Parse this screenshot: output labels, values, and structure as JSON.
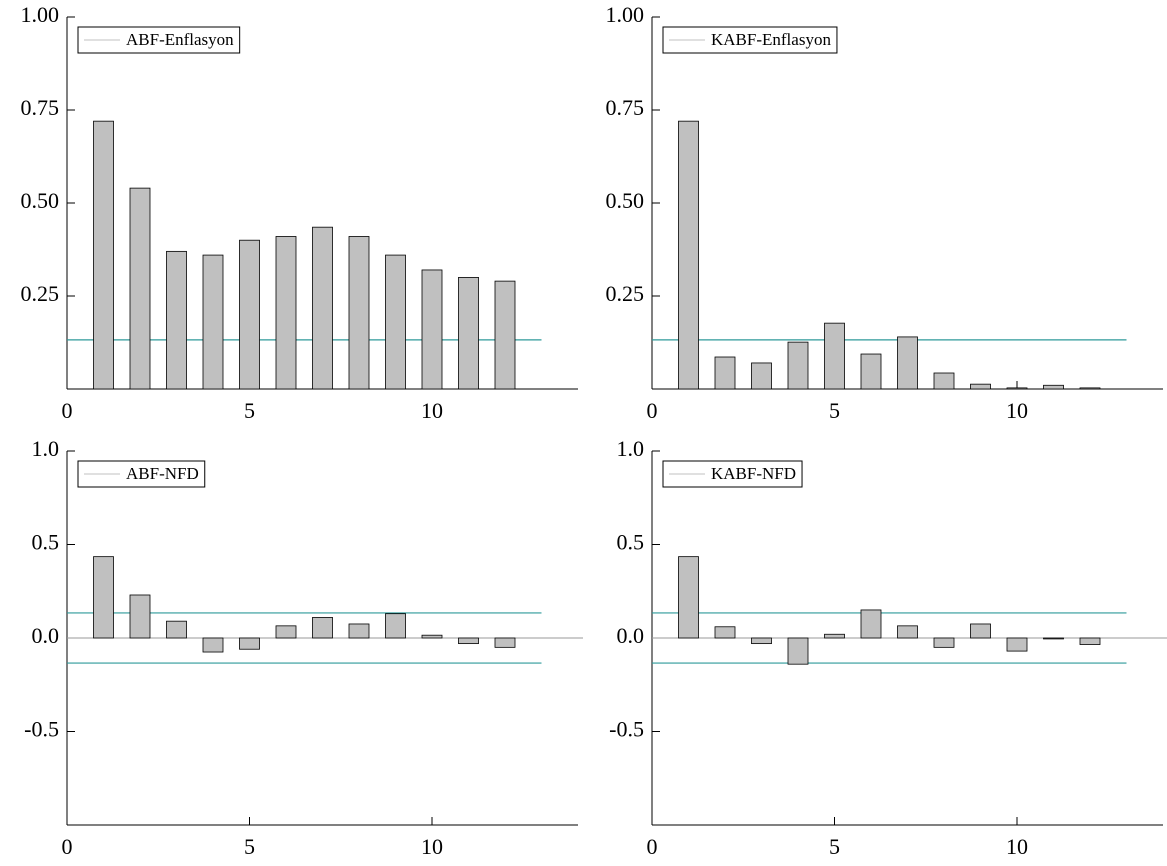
{
  "chart_data": [
    {
      "type": "bar",
      "x": [
        1,
        2,
        3,
        4,
        5,
        6,
        7,
        8,
        9,
        10,
        11,
        12
      ],
      "series": [
        {
          "name": "ABF-Enflasyon",
          "color": "#c0c0c0",
          "values": [
            0.72,
            0.54,
            0.37,
            0.36,
            0.4,
            0.41,
            0.435,
            0.41,
            0.36,
            0.32,
            0.3,
            0.29
          ]
        }
      ],
      "bands": [
        0.132
      ],
      "band_color": "#2e9a9a",
      "legend": "upper left",
      "xlim": [
        0,
        14
      ],
      "xticks": [
        0,
        5,
        10
      ],
      "ylim": [
        0,
        1
      ],
      "yticks": [
        0.25,
        {
          "value": 0.5,
          "label": "0.50"
        },
        0.75,
        {
          "value": 1,
          "label": "1.00"
        }
      ]
    },
    {
      "type": "bar",
      "x": [
        1,
        2,
        3,
        4,
        5,
        6,
        7,
        8,
        9,
        10,
        11,
        12
      ],
      "series": [
        {
          "name": "KABF-Enflasyon",
          "color": "#c0c0c0",
          "values": [
            0.72,
            0.086,
            0.07,
            0.126,
            0.177,
            0.094,
            0.14,
            0.043,
            0.013,
            0.003,
            0.01,
            0.003
          ]
        }
      ],
      "bands": [
        0.132
      ],
      "band_color": "#2e9a9a",
      "legend": "upper left",
      "xlim": [
        0,
        14
      ],
      "xticks": [
        0,
        5,
        10
      ],
      "ylim": [
        0,
        1
      ],
      "yticks": [
        0.25,
        {
          "value": 0.5,
          "label": "0.50"
        },
        0.75,
        {
          "value": 1,
          "label": "1.00"
        }
      ]
    },
    {
      "type": "bar",
      "x": [
        1,
        2,
        3,
        4,
        5,
        6,
        7,
        8,
        9,
        10,
        11,
        12
      ],
      "series": [
        {
          "name": "ABF-NFD",
          "color": "#c0c0c0",
          "values": [
            0.435,
            0.23,
            0.09,
            -0.075,
            -0.06,
            0.065,
            0.11,
            0.075,
            0.13,
            0.015,
            -0.03,
            -0.05
          ]
        }
      ],
      "bands": [
        0.134,
        -0.134
      ],
      "band_color": "#2e9a9a",
      "legend": "upper left",
      "xlim": [
        0,
        14
      ],
      "xticks": [
        0,
        5,
        10
      ],
      "ylim": [
        -1,
        1
      ],
      "yticks": [
        -0.5,
        {
          "value": 0,
          "label": "0.0"
        },
        0.5,
        {
          "value": 1,
          "label": "1.0"
        }
      ]
    },
    {
      "type": "bar",
      "x": [
        1,
        2,
        3,
        4,
        5,
        6,
        7,
        8,
        9,
        10,
        11,
        12
      ],
      "series": [
        {
          "name": "KABF-NFD",
          "color": "#c0c0c0",
          "values": [
            0.435,
            0.06,
            -0.03,
            -0.14,
            0.02,
            0.15,
            0.065,
            -0.05,
            0.075,
            -0.07,
            -0.005,
            -0.035
          ]
        }
      ],
      "bands": [
        0.134,
        -0.134
      ],
      "band_color": "#2e9a9a",
      "legend": "upper left",
      "xlim": [
        0,
        14
      ],
      "xticks": [
        0,
        5,
        10
      ],
      "ylim": [
        -1,
        1
      ],
      "yticks": [
        -0.5,
        {
          "value": 0,
          "label": "0.0"
        },
        0.5,
        {
          "value": 1,
          "label": "1.0"
        }
      ]
    }
  ]
}
